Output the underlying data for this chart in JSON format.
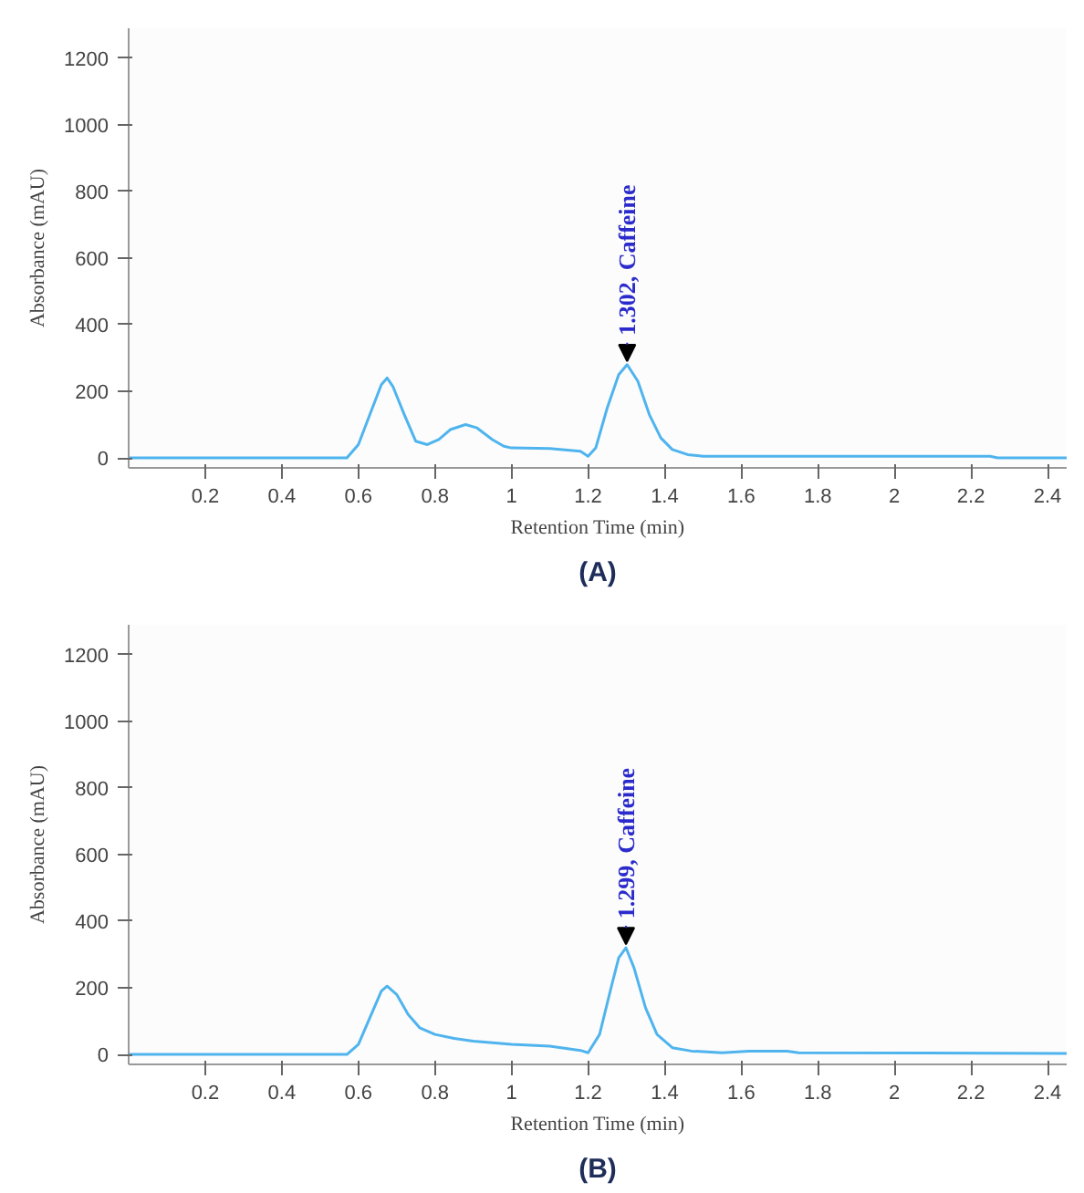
{
  "chart_data": [
    {
      "type": "line",
      "title": "(A)",
      "xlabel": "Retention Time (min)",
      "ylabel": "Absorbance (mAU)",
      "xlim": [
        0,
        2.45
      ],
      "ylim": [
        -30,
        1290
      ],
      "xticks": [
        0.2,
        0.4,
        0.6,
        0.8,
        1,
        1.2,
        1.4,
        1.6,
        1.8,
        2,
        2.2,
        2.4
      ],
      "yticks": [
        0,
        200,
        400,
        600,
        800,
        1000,
        1200
      ],
      "grid": false,
      "annotations": [
        {
          "text": "1.302, Caffeine",
          "x": 1.302,
          "y": 280
        }
      ],
      "series": [
        {
          "color": "#4fb4ee",
          "x": [
            0,
            0.3,
            0.57,
            0.6,
            0.63,
            0.66,
            0.675,
            0.69,
            0.72,
            0.75,
            0.78,
            0.81,
            0.84,
            0.88,
            0.91,
            0.95,
            0.98,
            1.0,
            1.1,
            1.18,
            1.2,
            1.22,
            1.25,
            1.28,
            1.302,
            1.33,
            1.36,
            1.39,
            1.42,
            1.46,
            1.5,
            1.8,
            2.25,
            2.27,
            2.45
          ],
          "values": [
            0,
            0,
            0,
            40,
            130,
            220,
            240,
            215,
            130,
            50,
            40,
            55,
            85,
            100,
            90,
            55,
            35,
            30,
            28,
            20,
            5,
            30,
            150,
            250,
            280,
            230,
            130,
            60,
            25,
            10,
            5,
            5,
            5,
            0,
            0
          ]
        }
      ]
    },
    {
      "type": "line",
      "title": "(B)",
      "xlabel": "Retention Time (min)",
      "ylabel": "Absorbance (mAU)",
      "xlim": [
        0,
        2.45
      ],
      "ylim": [
        -30,
        1290
      ],
      "xticks": [
        0.2,
        0.4,
        0.6,
        0.8,
        1,
        1.2,
        1.4,
        1.6,
        1.8,
        2,
        2.2,
        2.4
      ],
      "yticks": [
        0,
        200,
        400,
        600,
        800,
        1000,
        1200
      ],
      "grid": false,
      "annotations": [
        {
          "text": "1.299, Caffeine",
          "x": 1.299,
          "y": 320
        }
      ],
      "series": [
        {
          "color": "#4fb4ee",
          "x": [
            0,
            0.3,
            0.57,
            0.6,
            0.63,
            0.66,
            0.675,
            0.7,
            0.73,
            0.76,
            0.8,
            0.85,
            0.9,
            1.0,
            1.1,
            1.18,
            1.2,
            1.23,
            1.26,
            1.28,
            1.299,
            1.32,
            1.35,
            1.38,
            1.42,
            1.47,
            1.55,
            1.62,
            1.72,
            1.75,
            2.45
          ],
          "values": [
            0,
            0,
            0,
            30,
            110,
            190,
            205,
            180,
            120,
            80,
            60,
            48,
            40,
            30,
            25,
            12,
            5,
            60,
            200,
            290,
            320,
            260,
            140,
            60,
            20,
            10,
            5,
            10,
            10,
            5,
            3
          ]
        }
      ]
    }
  ]
}
